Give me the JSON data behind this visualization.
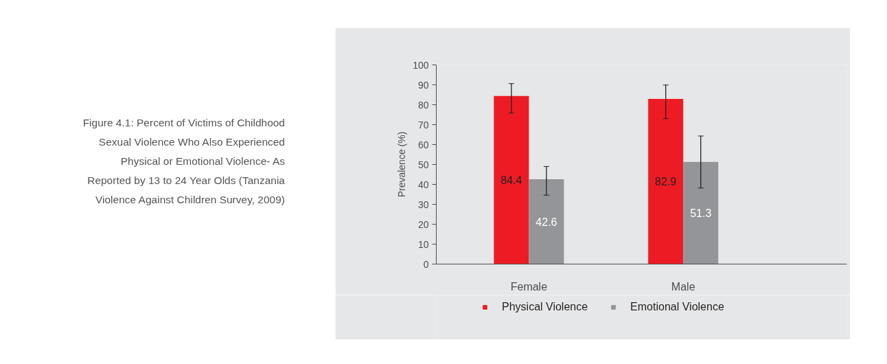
{
  "chart_data": {
    "type": "bar",
    "title": "Figure 4.1: Percent of Victims of Childhood Sexual Violence Who Also Experienced Physical or Emotional Violence- As Reported by 13 to 24 Year Olds (Tanzania Violence Against Children Survey, 2009)",
    "ylabel": "Prevalence (%)",
    "categories": [
      "Female",
      "Male"
    ],
    "series": [
      {
        "name": "Physical Violence",
        "color": "#ed1c24",
        "values": [
          84.4,
          82.9
        ],
        "errors": [
          [
            75.8,
            90.6
          ],
          [
            73.0,
            89.9
          ]
        ]
      },
      {
        "name": "Emotional Violence",
        "color": "#939598",
        "values": [
          42.6,
          51.3
        ],
        "errors": [
          [
            34.6,
            49.0
          ],
          [
            38.2,
            64.3
          ]
        ]
      }
    ],
    "ylim": [
      0,
      100
    ],
    "yticks": [
      0,
      10,
      20,
      30,
      40,
      50,
      60,
      70,
      80,
      90,
      100
    ],
    "data_labels": true,
    "grid": false,
    "legend": "bottom"
  }
}
